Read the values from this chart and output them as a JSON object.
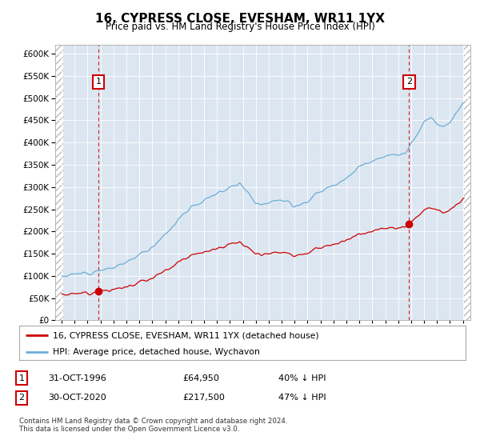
{
  "title": "16, CYPRESS CLOSE, EVESHAM, WR11 1YX",
  "subtitle": "Price paid vs. HM Land Registry's House Price Index (HPI)",
  "ylim": [
    0,
    620000
  ],
  "yticks": [
    0,
    50000,
    100000,
    150000,
    200000,
    250000,
    300000,
    350000,
    400000,
    450000,
    500000,
    550000,
    600000
  ],
  "plot_bg": "#dce6f1",
  "hpi_color": "#6baed6",
  "price_color": "#cc0000",
  "sale1_date": 1996.833,
  "sale1_price": 64950,
  "sale2_date": 2020.833,
  "sale2_price": 217500,
  "legend_label1": "16, CYPRESS CLOSE, EVESHAM, WR11 1YX (detached house)",
  "legend_label2": "HPI: Average price, detached house, Wychavon",
  "annotation1_label": "1",
  "annotation2_label": "2",
  "note1_date": "31-OCT-1996",
  "note1_price": "£64,950",
  "note1_hpi": "40% ↓ HPI",
  "note2_date": "30-OCT-2020",
  "note2_price": "£217,500",
  "note2_hpi": "47% ↓ HPI",
  "footer": "Contains HM Land Registry data © Crown copyright and database right 2024.\nThis data is licensed under the Open Government Licence v3.0.",
  "hpi_anchors_dates": [
    1994.0,
    1995.0,
    1996.0,
    1997.0,
    1998.0,
    1999.0,
    2000.0,
    2001.0,
    2002.0,
    2003.0,
    2004.0,
    2005.0,
    2006.0,
    2007.0,
    2007.75,
    2008.5,
    2009.0,
    2009.5,
    2010.0,
    2010.5,
    2011.0,
    2011.5,
    2012.0,
    2012.5,
    2013.0,
    2013.5,
    2014.0,
    2015.0,
    2016.0,
    2017.0,
    2018.0,
    2019.0,
    2020.0,
    2020.5,
    2021.0,
    2021.5,
    2022.0,
    2022.5,
    2023.0,
    2023.5,
    2024.0,
    2024.5,
    2025.0
  ],
  "hpi_anchors_values": [
    100000,
    103000,
    108000,
    114000,
    118000,
    130000,
    148000,
    165000,
    195000,
    225000,
    255000,
    270000,
    285000,
    300000,
    310000,
    285000,
    265000,
    260000,
    268000,
    272000,
    270000,
    265000,
    258000,
    262000,
    268000,
    278000,
    292000,
    305000,
    320000,
    345000,
    360000,
    368000,
    372000,
    375000,
    395000,
    420000,
    445000,
    455000,
    440000,
    435000,
    445000,
    468000,
    490000
  ],
  "hpi_noise_seed": 12,
  "hpi_noise_scale": 4000,
  "price_noise_seed": 7,
  "price_noise_scale": 2500
}
